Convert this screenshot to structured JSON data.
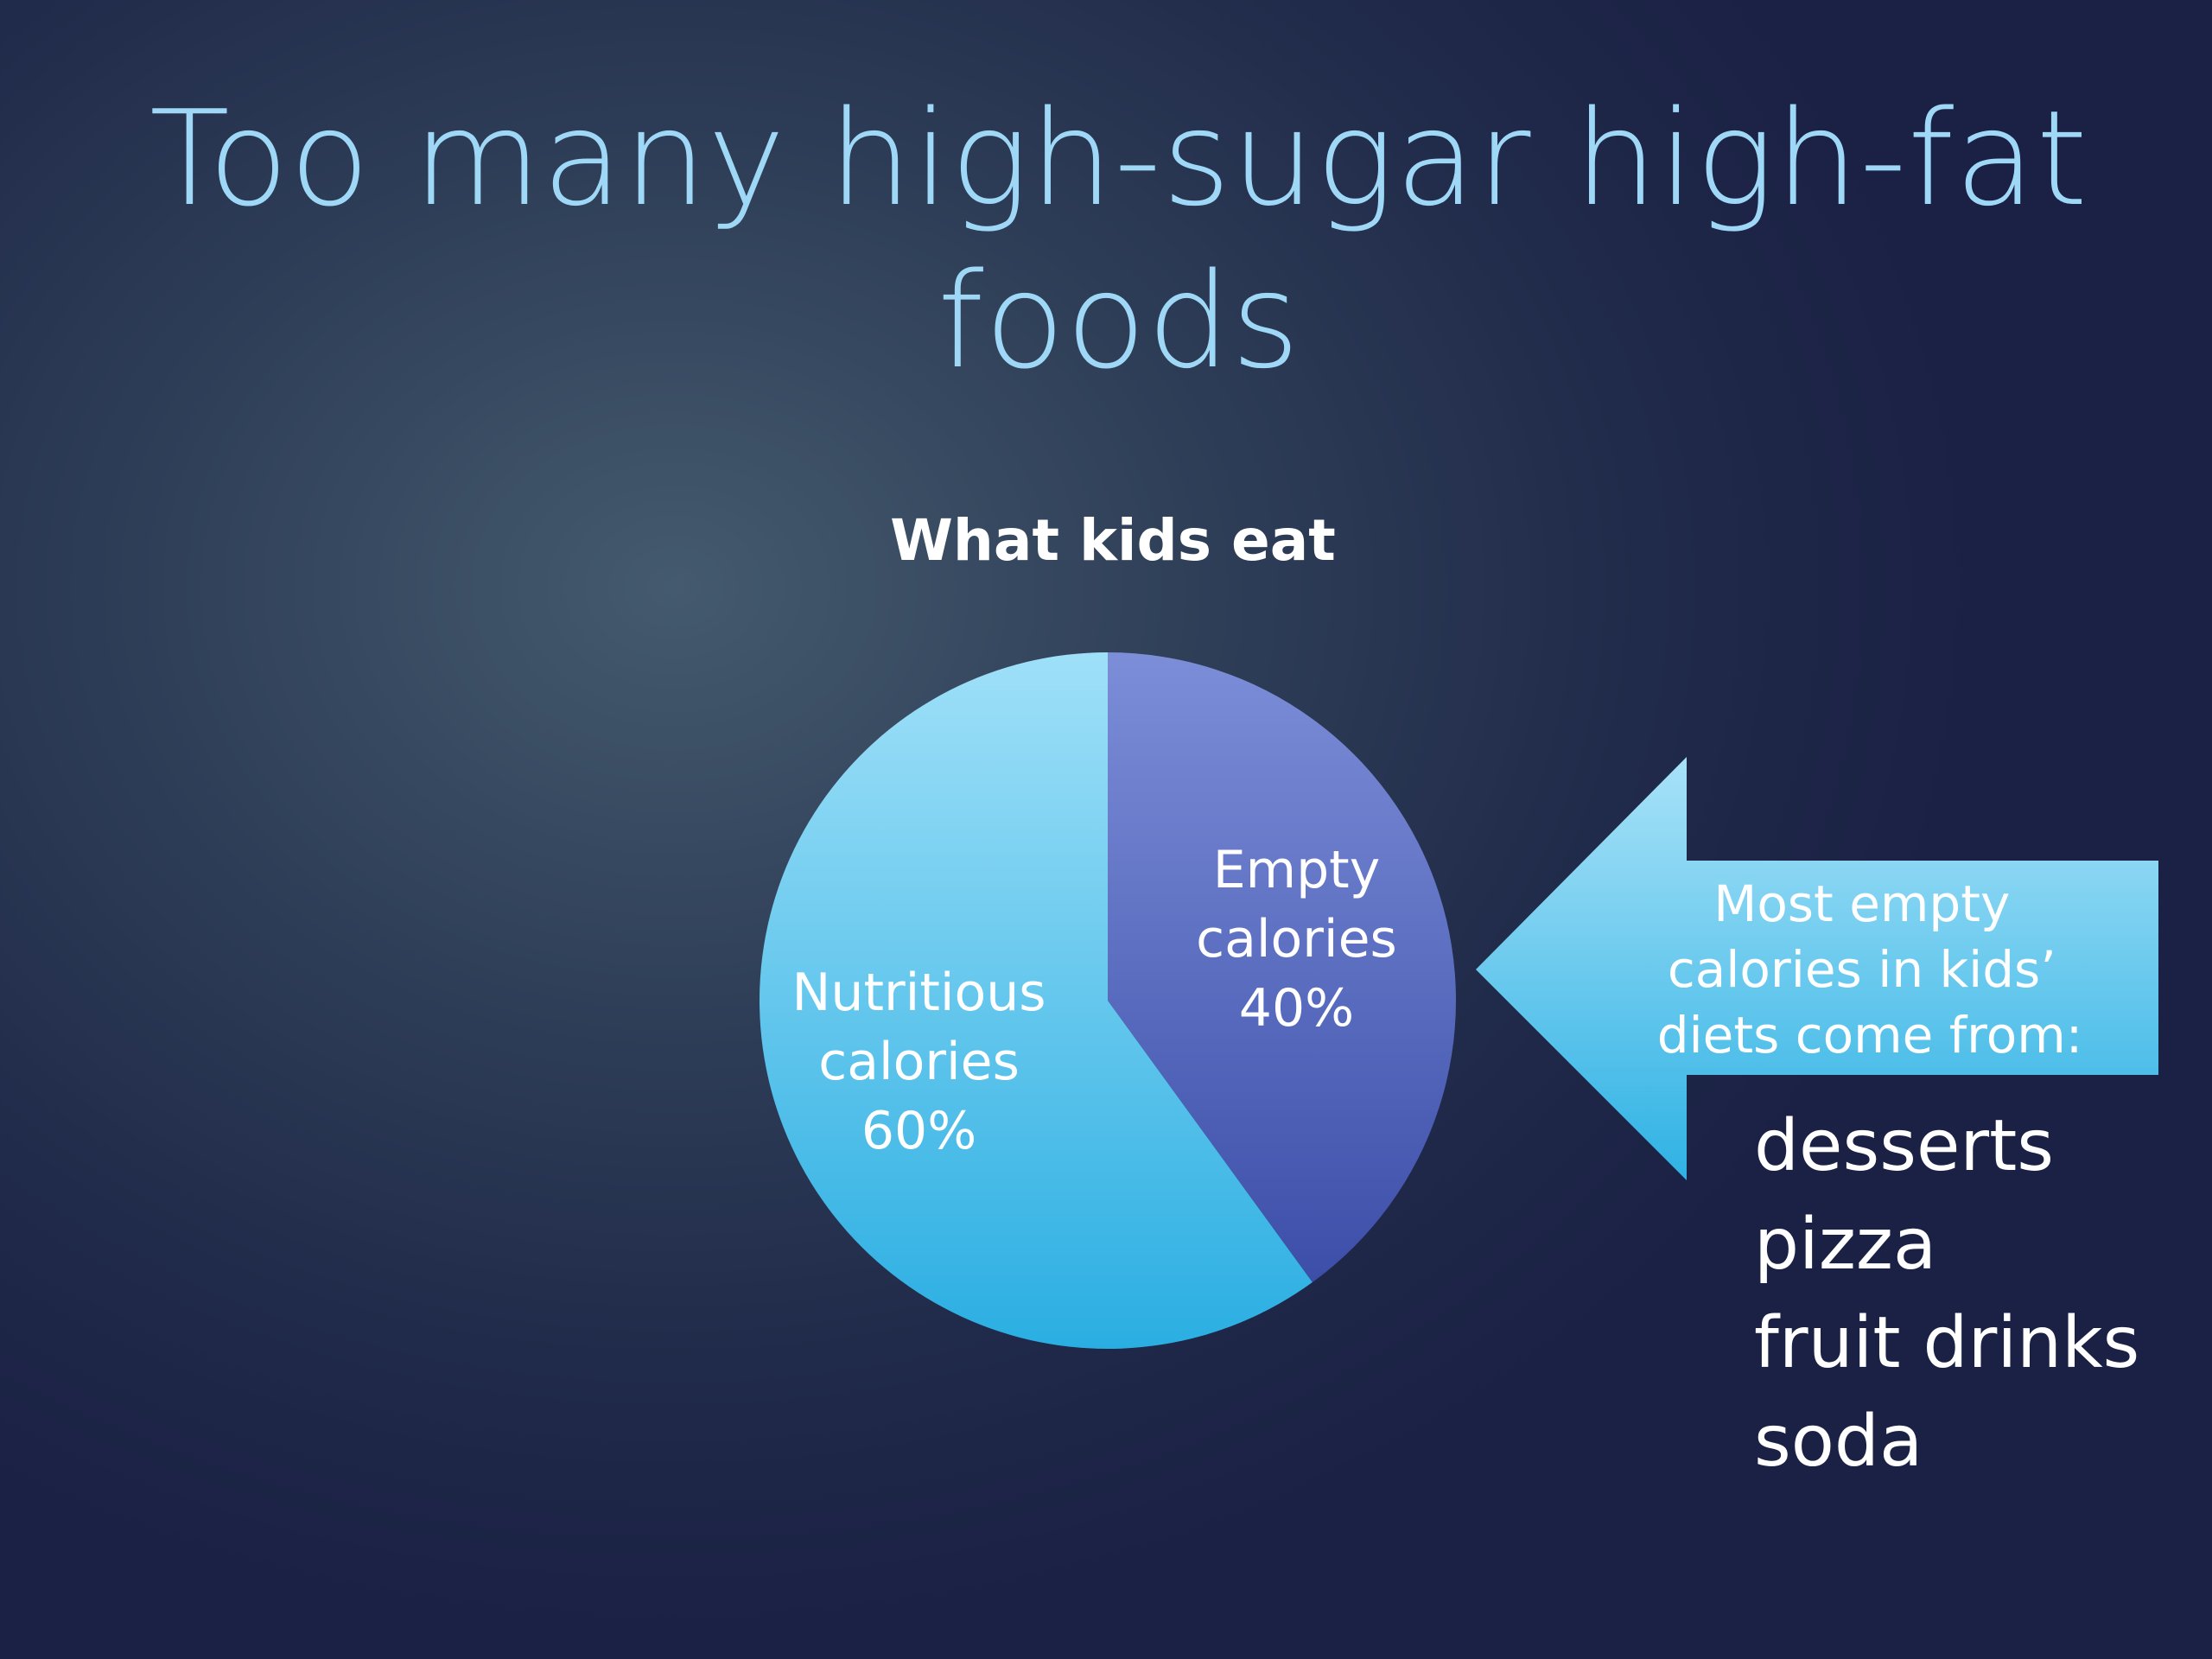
{
  "slide": {
    "title": "Too many high-sugar high-fat foods"
  },
  "chart_data": {
    "type": "pie",
    "title": "What kids eat",
    "slices": [
      {
        "label": "Empty calories",
        "value": 40,
        "value_label": "40%",
        "color": "#5563b8"
      },
      {
        "label": "Nutritious calories",
        "value": 60,
        "value_label": "60%",
        "color": "#5ec6ee"
      }
    ]
  },
  "callout": {
    "lines": [
      "Most empty",
      "calories in kids’",
      "diets come from:"
    ],
    "color": "#4fc0ec"
  },
  "foods": [
    "desserts",
    "pizza",
    "fruit drinks",
    "soda"
  ]
}
